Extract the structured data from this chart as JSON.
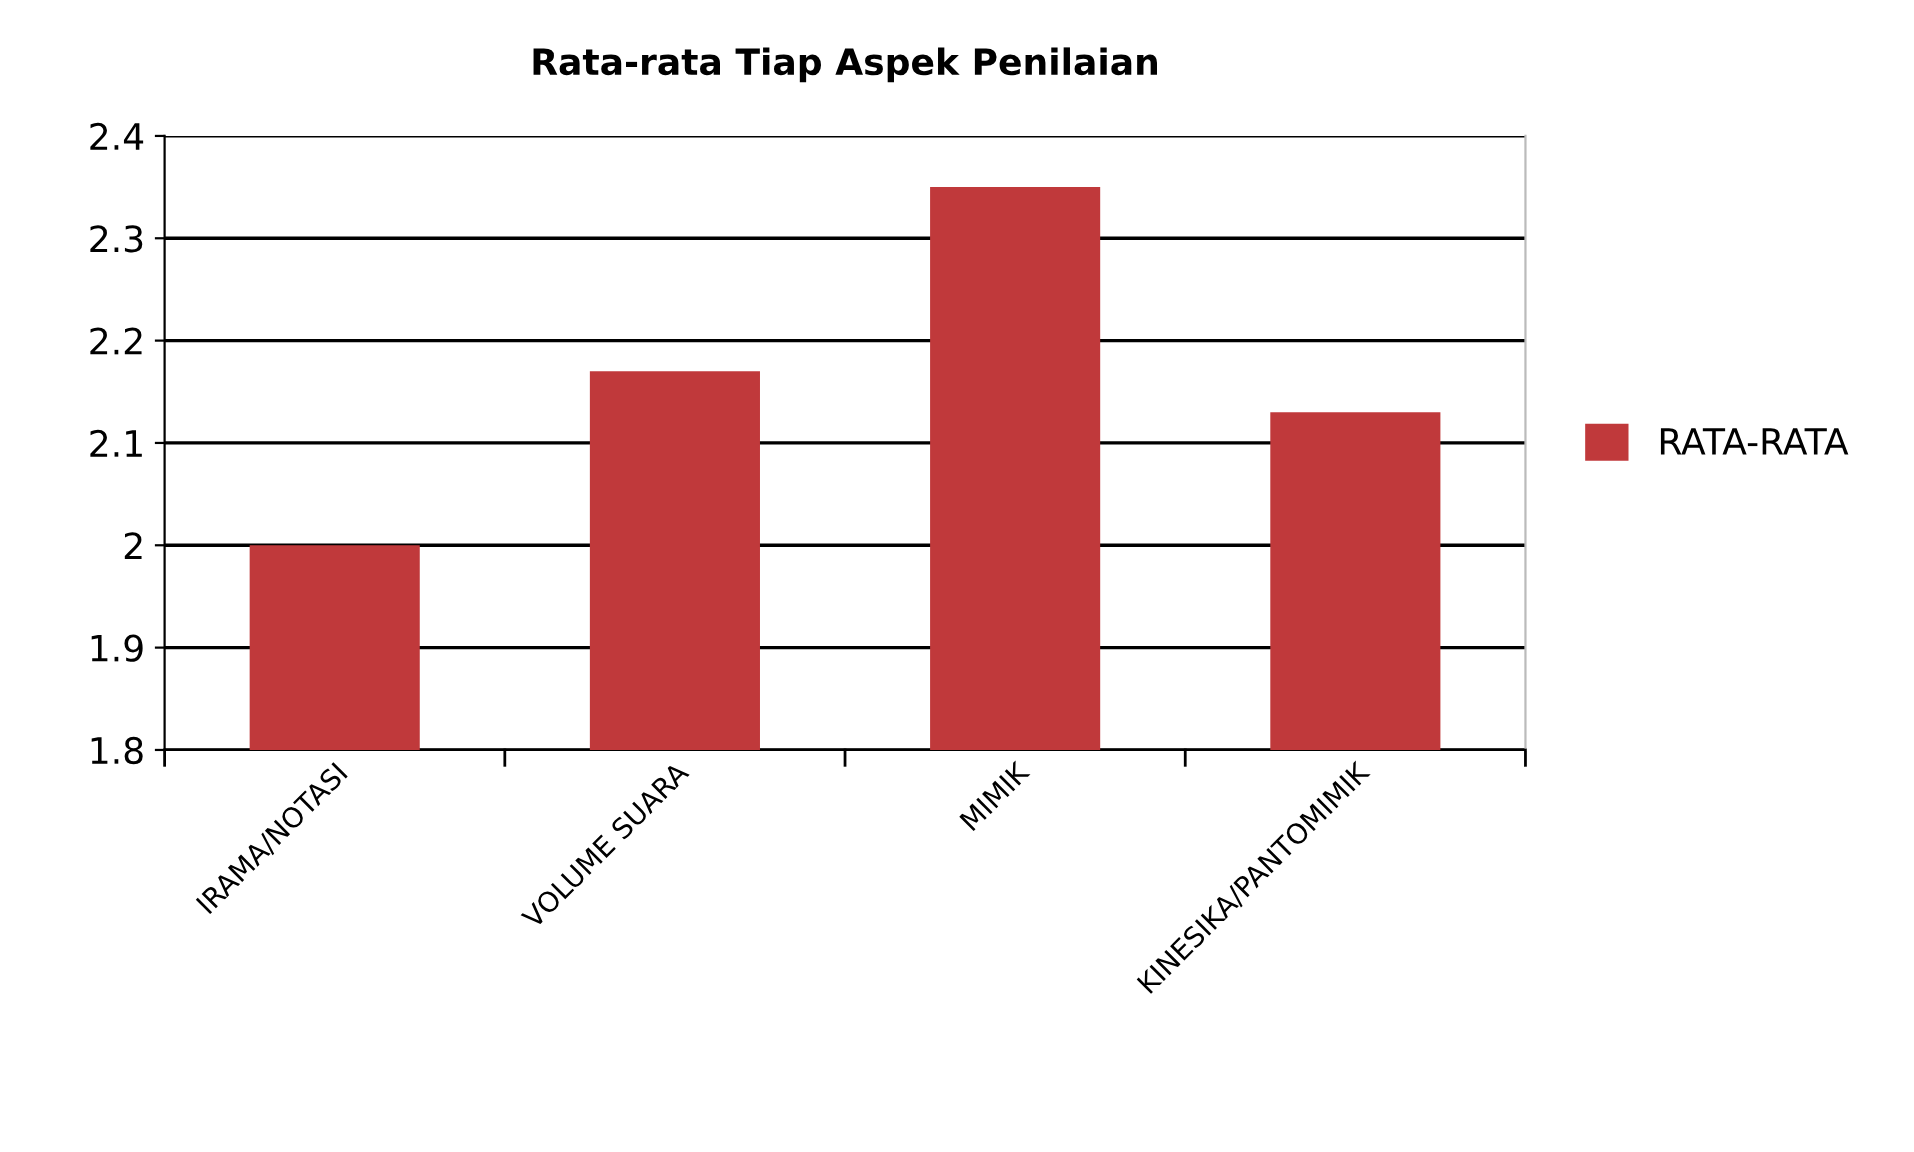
{
  "chart_data": {
    "type": "bar",
    "title": "Rata-rata Tiap Aspek Penilaian",
    "categories": [
      "IRAMA/NOTASI",
      "VOLUME SUARA",
      "MIMIK",
      "KINESIKA/PANTOMIMIK"
    ],
    "series": [
      {
        "name": "RATA-RATA",
        "color": "#c0393b",
        "values": [
          2.0,
          2.17,
          2.35,
          2.13
        ]
      }
    ],
    "ylim": [
      1.8,
      2.4
    ],
    "yticks": [
      1.8,
      1.9,
      2,
      2.1,
      2.2,
      2.3,
      2.4
    ],
    "grid": "y",
    "legend": "right"
  }
}
